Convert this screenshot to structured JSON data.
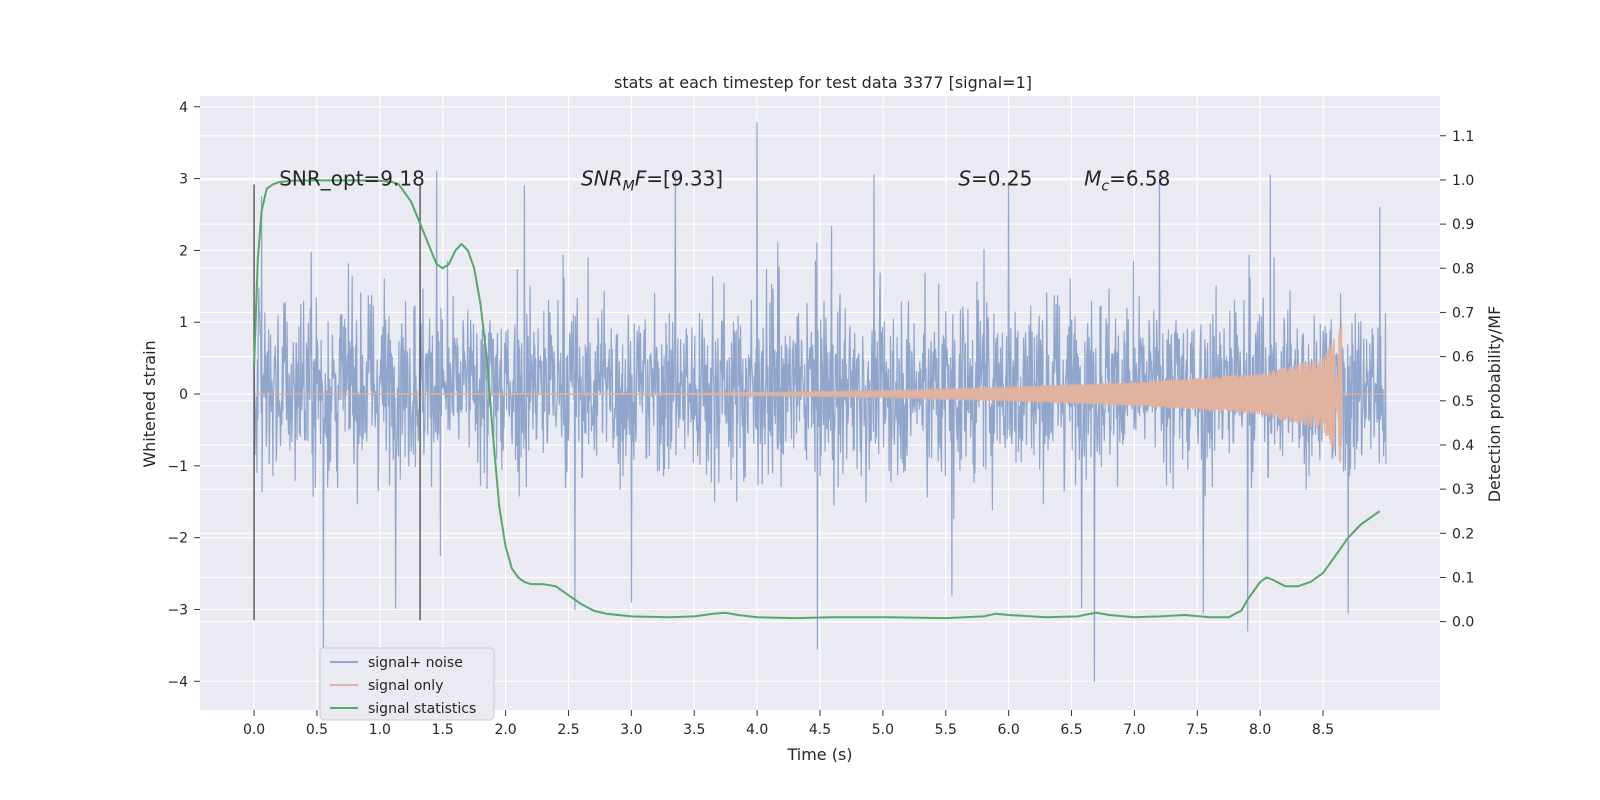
{
  "chart_data": {
    "type": "line",
    "title": "stats at each timestep for test data 3377 [signal=1]",
    "xlabel": "Time (s)",
    "ylabel_left": "Whitened strain",
    "ylabel_right": "Detection probability/MF",
    "xlim": [
      -0.43,
      9.43
    ],
    "ylim_left": [
      -4.4,
      4.15
    ],
    "ylim_right": [
      -0.2,
      1.19
    ],
    "x_ticks": [
      0.0,
      0.5,
      1.0,
      1.5,
      2.0,
      2.5,
      3.0,
      3.5,
      4.0,
      4.5,
      5.0,
      5.5,
      6.0,
      6.5,
      7.0,
      7.5,
      8.0,
      8.5
    ],
    "x_tick_labels": [
      "0.0",
      "0.5",
      "1.0",
      "1.5",
      "2.0",
      "2.5",
      "3.0",
      "3.5",
      "4.0",
      "4.5",
      "5.0",
      "5.5",
      "6.0",
      "6.5",
      "7.0",
      "7.5",
      "8.0",
      "8.5"
    ],
    "y_left_ticks": [
      -4,
      -3,
      -2,
      -1,
      0,
      1,
      2,
      3,
      4
    ],
    "y_left_tick_labels": [
      "−4",
      "−3",
      "−2",
      "−1",
      "0",
      "1",
      "2",
      "3",
      "4"
    ],
    "y_right_ticks": [
      0.0,
      0.1,
      0.2,
      0.3,
      0.4,
      0.5,
      0.6,
      0.7,
      0.8,
      0.9,
      1.0,
      1.1
    ],
    "y_right_tick_labels": [
      "0.0",
      "0.1",
      "0.2",
      "0.3",
      "0.4",
      "0.5",
      "0.6",
      "0.7",
      "0.8",
      "0.9",
      "1.0",
      "1.1"
    ],
    "grid": true,
    "legend_placement": "lower-left",
    "vertical_markers_x": [
      0.0,
      1.32
    ],
    "vertical_markers_range": [
      -3.15,
      2.92
    ],
    "annotations": [
      {
        "text": "SNR_opt=9.18",
        "x": 0.2,
        "y": 3.0
      },
      {
        "text": "=[9.33]",
        "math": "SNR",
        "sub": "M",
        "suffix": "F",
        "x": 2.6,
        "y": 3.0
      },
      {
        "text": "=0.25",
        "math": "S",
        "x": 5.6,
        "y": 3.0
      },
      {
        "text": "=6.58",
        "math": "M",
        "sub": "c",
        "x": 6.6,
        "y": 3.0
      }
    ],
    "series": [
      {
        "name": "signal+ noise",
        "color": "#8fa5cc",
        "kind": "noise",
        "x_range": [
          0.0,
          9.0
        ],
        "typical_envelope": [
          -1.5,
          1.7
        ],
        "notable_peaks": [
          {
            "x": 0.06,
            "y": 2.75
          },
          {
            "x": 0.55,
            "y": -3.55
          },
          {
            "x": 1.45,
            "y": 3.1
          },
          {
            "x": 1.48,
            "y": -2.25
          },
          {
            "x": 2.15,
            "y": 2.9
          },
          {
            "x": 2.55,
            "y": -3.0
          },
          {
            "x": 3.0,
            "y": -2.9
          },
          {
            "x": 3.35,
            "y": 3.1
          },
          {
            "x": 4.0,
            "y": 3.78
          },
          {
            "x": 4.48,
            "y": -3.55
          },
          {
            "x": 4.93,
            "y": 3.05
          },
          {
            "x": 5.55,
            "y": -2.8
          },
          {
            "x": 6.0,
            "y": 2.95
          },
          {
            "x": 6.68,
            "y": -4.0
          },
          {
            "x": 7.2,
            "y": 3.05
          },
          {
            "x": 7.55,
            "y": -3.05
          },
          {
            "x": 7.9,
            "y": -3.3
          },
          {
            "x": 8.08,
            "y": 3.05
          },
          {
            "x": 8.7,
            "y": -3.05
          },
          {
            "x": 8.95,
            "y": 2.6
          }
        ]
      },
      {
        "name": "signal only",
        "color": "#e0b2a0",
        "kind": "chirp",
        "x_range": [
          0.0,
          8.67
        ],
        "amplitude_at": [
          {
            "x": 3.5,
            "y": 0.01
          },
          {
            "x": 5.0,
            "y": 0.05
          },
          {
            "x": 6.0,
            "y": 0.1
          },
          {
            "x": 7.0,
            "y": 0.16
          },
          {
            "x": 8.0,
            "y": 0.28
          },
          {
            "x": 8.5,
            "y": 0.5
          },
          {
            "x": 8.65,
            "y": 1.0
          }
        ]
      },
      {
        "name": "signal statistics",
        "color": "#55a868",
        "kind": "line",
        "axis": "right",
        "x": [
          0.0,
          0.03,
          0.06,
          0.1,
          0.15,
          0.2,
          0.3,
          0.5,
          0.8,
          1.0,
          1.1,
          1.15,
          1.25,
          1.35,
          1.45,
          1.5,
          1.55,
          1.6,
          1.65,
          1.7,
          1.75,
          1.8,
          1.85,
          1.9,
          1.95,
          2.0,
          2.05,
          2.1,
          2.15,
          2.2,
          2.3,
          2.4,
          2.5,
          2.6,
          2.7,
          2.8,
          3.0,
          3.3,
          3.5,
          3.65,
          3.75,
          3.85,
          4.0,
          4.3,
          4.6,
          5.0,
          5.5,
          5.8,
          5.9,
          6.0,
          6.3,
          6.55,
          6.65,
          6.7,
          6.8,
          7.0,
          7.2,
          7.4,
          7.6,
          7.75,
          7.85,
          7.9,
          8.0,
          8.05,
          8.1,
          8.2,
          8.3,
          8.4,
          8.5,
          8.6,
          8.7,
          8.8,
          8.95
        ],
        "values": [
          0.58,
          0.82,
          0.93,
          0.98,
          0.99,
          0.995,
          0.998,
          0.999,
          0.999,
          0.998,
          0.995,
          0.99,
          0.95,
          0.88,
          0.81,
          0.8,
          0.81,
          0.84,
          0.855,
          0.84,
          0.8,
          0.72,
          0.6,
          0.42,
          0.26,
          0.17,
          0.12,
          0.1,
          0.09,
          0.085,
          0.085,
          0.08,
          0.06,
          0.04,
          0.025,
          0.018,
          0.012,
          0.01,
          0.012,
          0.018,
          0.02,
          0.015,
          0.01,
          0.008,
          0.01,
          0.01,
          0.008,
          0.012,
          0.018,
          0.015,
          0.01,
          0.012,
          0.018,
          0.02,
          0.015,
          0.01,
          0.012,
          0.015,
          0.01,
          0.01,
          0.025,
          0.05,
          0.09,
          0.1,
          0.095,
          0.08,
          0.08,
          0.09,
          0.11,
          0.15,
          0.19,
          0.22,
          0.25
        ]
      }
    ]
  }
}
